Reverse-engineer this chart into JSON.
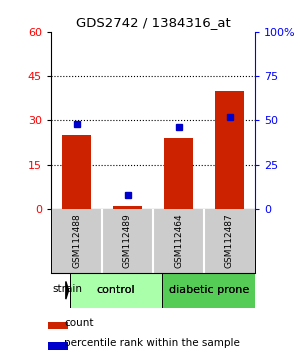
{
  "title": "GDS2742 / 1384316_at",
  "samples": [
    "GSM112488",
    "GSM112489",
    "GSM112464",
    "GSM112487"
  ],
  "counts": [
    25,
    1,
    24,
    40
  ],
  "percentiles": [
    48,
    8,
    46,
    52
  ],
  "left_ylim": [
    0,
    60
  ],
  "right_ylim": [
    0,
    100
  ],
  "left_yticks": [
    0,
    15,
    30,
    45,
    60
  ],
  "right_yticks": [
    0,
    25,
    50,
    75,
    100
  ],
  "right_yticklabels": [
    "0",
    "25",
    "50",
    "75",
    "100%"
  ],
  "bar_color": "#cc2200",
  "dot_color": "#0000cc",
  "groups": [
    {
      "label": "control",
      "indices": [
        0,
        1
      ],
      "color": "#aaffaa"
    },
    {
      "label": "diabetic prone",
      "indices": [
        2,
        3
      ],
      "color": "#55cc55"
    }
  ],
  "sample_bg": "#cccccc",
  "plot_bg": "#ffffff",
  "strain_label": "strain",
  "legend_count": "count",
  "legend_percentile": "percentile rank within the sample",
  "title_fontsize": 9.5,
  "tick_fontsize": 8,
  "sample_fontsize": 6.5,
  "group_fontsize": 8,
  "legend_fontsize": 7.5
}
